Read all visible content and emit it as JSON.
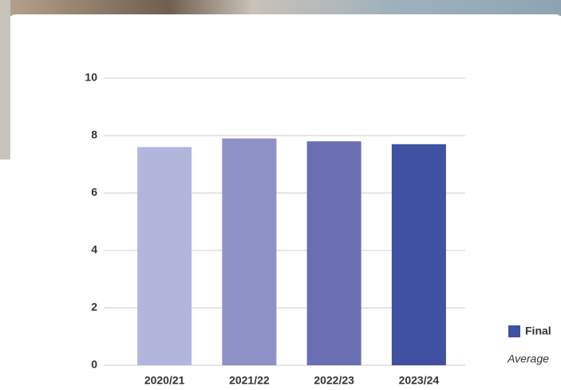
{
  "chart_data": {
    "type": "bar",
    "categories": [
      "2020/21",
      "2021/22",
      "2022/23",
      "2023/24"
    ],
    "series": [
      {
        "name": "Final",
        "color": "#3f51a0",
        "values": [
          7.6,
          7.9,
          7.8,
          7.7
        ]
      }
    ],
    "colors": [
      "#b3b6dc",
      "#8e91c6",
      "#6a6fb3",
      "#3f51a0"
    ],
    "ylim": [
      0,
      10
    ],
    "yticks": [
      0,
      2,
      4,
      6,
      8,
      10
    ],
    "grid": true,
    "note": "Average"
  }
}
